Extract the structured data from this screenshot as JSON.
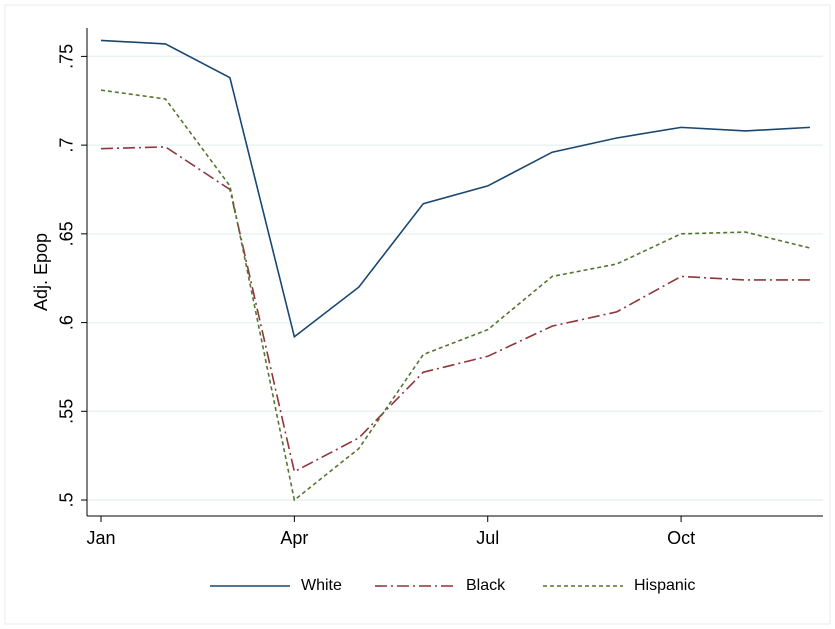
{
  "chart_data": {
    "type": "line",
    "y_label": "Adj. Epop",
    "categories": [
      "Jan",
      null,
      null,
      "Apr",
      null,
      null,
      "Jul",
      null,
      null,
      "Oct",
      null,
      null
    ],
    "series": [
      {
        "name": "White",
        "color": "#1a476f",
        "dash": "solid",
        "values": [
          0.759,
          0.757,
          0.738,
          0.592,
          0.62,
          0.667,
          0.677,
          0.696,
          0.704,
          0.71,
          0.708,
          0.71
        ]
      },
      {
        "name": "Black",
        "color": "#90353b",
        "dash": "dashdot",
        "values": [
          0.698,
          0.699,
          0.675,
          0.516,
          0.535,
          0.572,
          0.581,
          0.598,
          0.606,
          0.626,
          0.624,
          0.624
        ]
      },
      {
        "name": "Hispanic",
        "color": "#55752f",
        "dash": "dash",
        "values": [
          0.731,
          0.726,
          0.677,
          0.5,
          0.529,
          0.582,
          0.596,
          0.626,
          0.633,
          0.65,
          0.651,
          0.642
        ]
      }
    ],
    "ylim": [
      0.491,
      0.766
    ],
    "yticks": [
      {
        "value": 0.5,
        "label": ".5"
      },
      {
        "value": 0.55,
        "label": ".55"
      },
      {
        "value": 0.6,
        "label": ".6"
      },
      {
        "value": 0.65,
        "label": ".65"
      },
      {
        "value": 0.7,
        "label": ".7"
      },
      {
        "value": 0.75,
        "label": ".75"
      }
    ],
    "grid": true,
    "legend": "bottom"
  }
}
